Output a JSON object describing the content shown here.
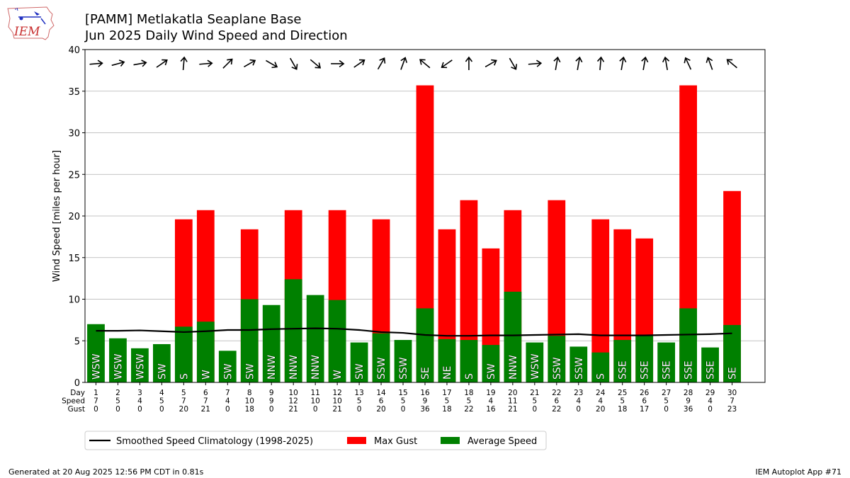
{
  "header": {
    "title": "[PAMM] Metlakatla Seaplane Base",
    "subtitle": "Jun 2025 Daily Wind Speed and Direction",
    "logo_text": "IEM"
  },
  "footer": {
    "generated": "Generated at 20 Aug 2025 12:56 PM CDT in 0.81s",
    "app": "IEM Autoplot App #71"
  },
  "colors": {
    "gust": "#ff0000",
    "speed": "#008000",
    "climatology": "#000000",
    "grid": "#b0b0b0"
  },
  "chart_data": {
    "type": "bar",
    "ylabel": "Wind Speed [miles per hour]",
    "ylim": [
      0,
      40
    ],
    "yticks": [
      0,
      5,
      10,
      15,
      20,
      25,
      30,
      35,
      40
    ],
    "row_labels": [
      "Day",
      "Speed",
      "Gust"
    ],
    "legend_position": "below",
    "days": [
      1,
      2,
      3,
      4,
      5,
      6,
      7,
      8,
      9,
      10,
      11,
      12,
      13,
      14,
      15,
      16,
      17,
      18,
      19,
      20,
      21,
      22,
      23,
      24,
      25,
      26,
      27,
      28,
      29,
      30
    ],
    "speed_labels": [
      7,
      5,
      4,
      5,
      7,
      7,
      4,
      10,
      9,
      12,
      10,
      10,
      5,
      6,
      5,
      9,
      5,
      5,
      4,
      11,
      5,
      6,
      4,
      4,
      5,
      6,
      5,
      9,
      4,
      7
    ],
    "gust_labels": [
      0,
      0,
      0,
      0,
      20,
      21,
      0,
      18,
      0,
      21,
      0,
      21,
      0,
      20,
      0,
      36,
      18,
      22,
      16,
      21,
      0,
      22,
      0,
      20,
      18,
      17,
      0,
      36,
      0,
      23
    ],
    "series": [
      {
        "name": "Smoothed Speed Climatology (1998-2025)",
        "type": "line",
        "values": [
          6.2,
          6.2,
          6.25,
          6.15,
          6.05,
          6.15,
          6.3,
          6.3,
          6.4,
          6.45,
          6.5,
          6.45,
          6.3,
          6.05,
          5.95,
          5.7,
          5.6,
          5.6,
          5.65,
          5.65,
          5.7,
          5.75,
          5.8,
          5.65,
          5.65,
          5.65,
          5.7,
          5.75,
          5.8,
          5.9
        ]
      },
      {
        "name": "Max Gust",
        "type": "bar",
        "values": [
          0,
          0,
          0,
          0,
          19.6,
          20.7,
          0,
          18.4,
          0,
          20.7,
          0,
          20.7,
          0,
          19.6,
          0,
          35.7,
          18.4,
          21.9,
          16.1,
          20.7,
          0,
          21.9,
          0,
          19.6,
          18.4,
          17.3,
          0,
          35.7,
          0,
          23.0
        ]
      },
      {
        "name": "Average Speed",
        "type": "bar",
        "values": [
          7.0,
          5.3,
          4.1,
          4.6,
          6.7,
          7.3,
          3.8,
          10.0,
          9.3,
          12.4,
          10.5,
          9.9,
          4.8,
          5.9,
          5.1,
          8.9,
          5.2,
          5.1,
          4.5,
          10.9,
          4.8,
          5.6,
          4.3,
          3.6,
          5.1,
          5.7,
          4.8,
          8.9,
          4.2,
          6.9
        ]
      }
    ],
    "directions": [
      "WSW",
      "WSW",
      "WSW",
      "SW",
      "S",
      "W",
      "SW",
      "SW",
      "NNW",
      "NNW",
      "NNW",
      "W",
      "SW",
      "SSW",
      "SSW",
      "SE",
      "NE",
      "S",
      "SW",
      "NNW",
      "WSW",
      "SSW",
      "SSW",
      "S",
      "SSE",
      "SSE",
      "SSE",
      "SSE",
      "SSE",
      "SE"
    ],
    "arrow_angles": [
      5,
      15,
      10,
      35,
      85,
      5,
      45,
      30,
      -30,
      -60,
      -40,
      0,
      35,
      60,
      70,
      140,
      215,
      90,
      30,
      -60,
      5,
      80,
      80,
      85,
      80,
      80,
      100,
      115,
      110,
      140
    ]
  }
}
